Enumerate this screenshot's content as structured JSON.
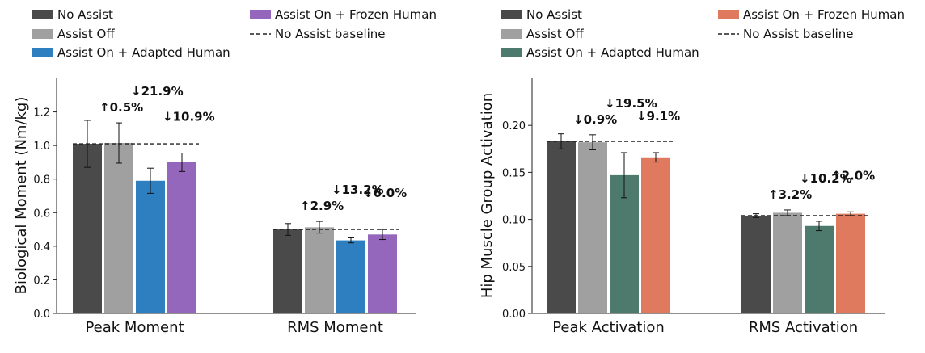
{
  "chart_data": [
    {
      "type": "bar",
      "ylabel": "Biological Moment (Nm/kg)",
      "ylim": [
        0,
        1.4
      ],
      "yticks": [
        "0.0",
        "0.2",
        "0.4",
        "0.6",
        "0.8",
        "1.0",
        "1.2"
      ],
      "categories": [
        "Peak Moment",
        "RMS Moment"
      ],
      "series": [
        {
          "name": "No Assist",
          "color": "#4a4a4a",
          "values": [
            1.01,
            0.5
          ],
          "err": [
            0.14,
            0.035
          ]
        },
        {
          "name": "Assist Off",
          "color": "#a0a0a0",
          "values": [
            1.015,
            0.513
          ],
          "err": [
            0.12,
            0.035
          ]
        },
        {
          "name": "Assist On + Adapted Human",
          "color": "#2d7fbf",
          "values": [
            0.79,
            0.435
          ],
          "err": [
            0.075,
            0.015
          ]
        },
        {
          "name": "Assist On + Frozen Human",
          "color": "#9467bd",
          "values": [
            0.9,
            0.47
          ],
          "err": [
            0.055,
            0.03
          ]
        }
      ],
      "baseline": {
        "label": "No Assist baseline",
        "values": [
          1.01,
          0.5
        ]
      },
      "annotations": [
        [
          "↑0.5%",
          "↓21.9%",
          "↓10.9%"
        ],
        [
          "↑2.9%",
          "↓13.2%",
          "↓6.0%"
        ]
      ],
      "legend": "top"
    },
    {
      "type": "bar",
      "ylabel": "Hip Muscle Group Activation",
      "ylim": [
        0,
        0.25
      ],
      "yticks": [
        "0.00",
        "0.05",
        "0.10",
        "0.15",
        "0.20"
      ],
      "categories": [
        "Peak Activation",
        "RMS Activation"
      ],
      "series": [
        {
          "name": "No Assist",
          "color": "#4a4a4a",
          "values": [
            0.183,
            0.104
          ],
          "err": [
            0.008,
            0.002
          ]
        },
        {
          "name": "Assist Off",
          "color": "#a0a0a0",
          "values": [
            0.182,
            0.107
          ],
          "err": [
            0.008,
            0.003
          ]
        },
        {
          "name": "Assist On + Adapted Human",
          "color": "#4e7a6e",
          "values": [
            0.147,
            0.093
          ],
          "err": [
            0.024,
            0.005
          ]
        },
        {
          "name": "Assist On + Frozen Human",
          "color": "#e07a5f",
          "values": [
            0.166,
            0.106
          ],
          "err": [
            0.005,
            0.002
          ]
        }
      ],
      "baseline": {
        "label": "No Assist baseline",
        "values": [
          0.183,
          0.104
        ]
      },
      "annotations": [
        [
          "↓0.9%",
          "↓19.5%",
          "↓9.1%"
        ],
        [
          "↑3.2%",
          "↓10.2%",
          "↑2.0%"
        ]
      ],
      "legend": "top"
    }
  ]
}
